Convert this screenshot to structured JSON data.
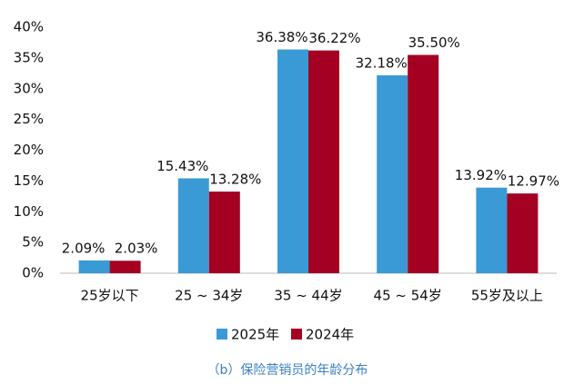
{
  "chart_data": {
    "type": "bar",
    "categories": [
      "25岁以下",
      "25 ~ 34岁",
      "35 ~ 44岁",
      "45 ~ 54岁",
      "55岁及以上"
    ],
    "series": [
      {
        "name": "2025年",
        "color": "#3a9ad6",
        "values": [
          2.09,
          15.43,
          36.38,
          32.18,
          13.92
        ],
        "value_labels": [
          "2.09%",
          "15.43%",
          "36.38%",
          "32.18%",
          "13.92%"
        ]
      },
      {
        "name": "2024年",
        "color": "#a40022",
        "values": [
          2.03,
          13.28,
          36.22,
          35.5,
          12.97
        ],
        "value_labels": [
          "2.03%",
          "13.28%",
          "36.22%",
          "35.50%",
          "12.97%"
        ]
      }
    ],
    "ylim": [
      0,
      40
    ],
    "yticks": [
      {
        "value": 0,
        "label": "0%"
      },
      {
        "value": 5,
        "label": "5%"
      },
      {
        "value": 10,
        "label": "10%"
      },
      {
        "value": 15,
        "label": "15%"
      },
      {
        "value": 20,
        "label": "20%"
      },
      {
        "value": 25,
        "label": "25%"
      },
      {
        "value": 30,
        "label": "30%"
      },
      {
        "value": 35,
        "label": "35%"
      },
      {
        "value": 40,
        "label": "40%"
      }
    ],
    "grid": false,
    "caption": "（b）保险营销员的年龄分布"
  }
}
